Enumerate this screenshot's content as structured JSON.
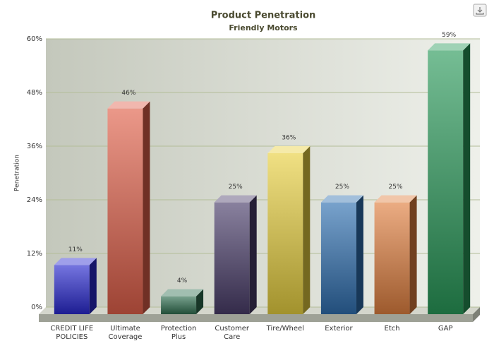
{
  "chart_data": {
    "type": "bar3d",
    "title": "Product Penetration",
    "subtitle": "Friendly Motors",
    "y_label": "Penetration",
    "categories": [
      "CREDIT LIFE POLICIES",
      "Ultimate Coverage",
      "Protection Plus",
      "Customer Care",
      "Tire/Wheel",
      "Exterior",
      "Etch",
      "GAP"
    ],
    "values": [
      11,
      46,
      4,
      25,
      36,
      25,
      25,
      59
    ],
    "value_labels": [
      "11%",
      "46%",
      "4%",
      "25%",
      "36%",
      "25%",
      "25%",
      "59%"
    ],
    "colors": [
      "#2a2ad0",
      "#e0604a",
      "#2f6e50",
      "#4a3d6a",
      "#e8d040",
      "#3070b0",
      "#e08040",
      "#2a9a5a"
    ],
    "ylim": [
      0,
      60
    ],
    "yticks": [
      {
        "value": 0,
        "label": "0%"
      },
      {
        "value": 12,
        "label": "12%"
      },
      {
        "value": 24,
        "label": "24%"
      },
      {
        "value": 36,
        "label": "36%"
      },
      {
        "value": 48,
        "label": "48%"
      },
      {
        "value": 60,
        "label": "60%"
      }
    ],
    "grid": true
  }
}
